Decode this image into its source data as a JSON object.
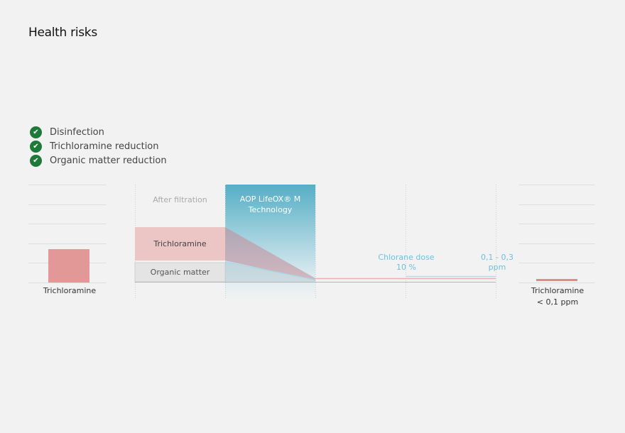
{
  "title": "Health risks",
  "benefits": [
    {
      "label": "Disinfection",
      "icon": "check-circle-icon"
    },
    {
      "label": "Trichloramine reduction",
      "icon": "check-circle-icon"
    },
    {
      "label": "Organic matter reduction",
      "icon": "check-circle-icon"
    }
  ],
  "before": {
    "label": "Trichloramine"
  },
  "process": {
    "after_filtration": "After filtration",
    "aop_line1": "AOP LifeOX® M",
    "aop_line2": "Technology",
    "trichloramine": "Trichloramine",
    "organic_matter": "Organic matter",
    "chlorane_line1": "Chlorane dose",
    "chlorane_line2": "10 %",
    "ppm_line1": "0,1 - 0,3",
    "ppm_line2": "ppm"
  },
  "after": {
    "label_line1": "Trichloramine",
    "label_line2": "< 0,1  ppm"
  },
  "colors": {
    "trichloramine": "#e39898",
    "aop": "#5bb0c8",
    "check": "#1f7a3a",
    "chlorane_text": "#6ec0dc"
  }
}
